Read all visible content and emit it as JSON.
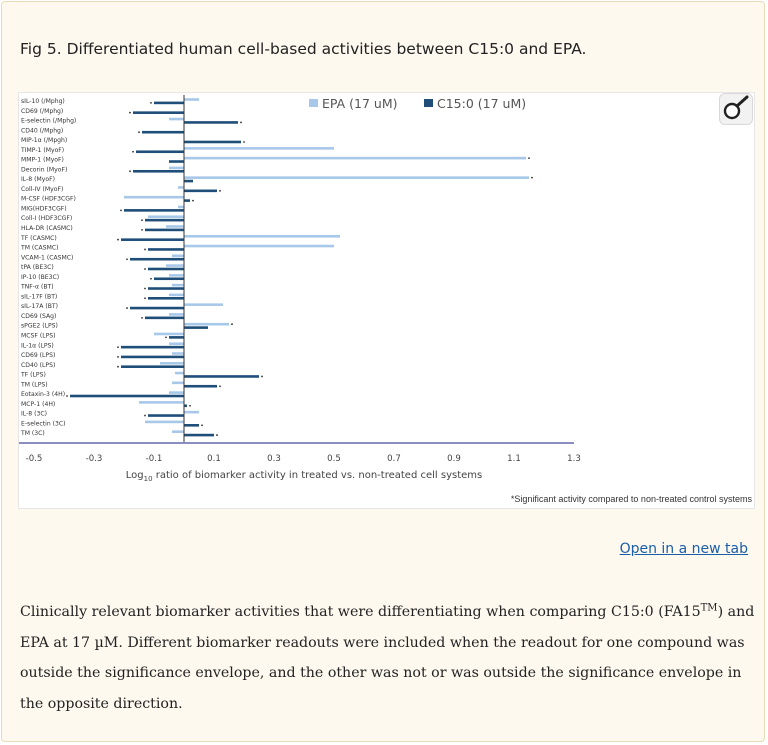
{
  "figure": {
    "title": "Fig 5. Differentiated human cell-based activities between C15:0 and EPA.",
    "zoom_icon": "magnifier-icon",
    "footnote": "*Significant activity compared to non-treated control systems",
    "open_link": "Open in a new tab"
  },
  "caption": {
    "part1": "Clinically relevant biomarker activities that were differentiating when comparing C15:0 (FA15",
    "tm": "TM",
    "part2": ") and EPA at 17 µM. Different biomarker readouts were included when the readout for one compound was outside the significance envelope, and the other was not or was outside the significance envelope in the opposite direction."
  },
  "chart_data": {
    "type": "bar",
    "orientation": "horizontal",
    "xlim": [
      -0.5,
      1.3
    ],
    "x_ticks": [
      "-0.5",
      "-0.3",
      "-0.1",
      "0.1",
      "0.3",
      "0.5",
      "0.7",
      "0.9",
      "1.1",
      "1.3"
    ],
    "xlabel_prefix": "Log",
    "xlabel_sub": "10",
    "xlabel_suffix": " ratio of biomarker activity in treated vs. non-treated cell systems",
    "legend_position": "top",
    "colors": {
      "epa": "#a8c8ea",
      "c15": "#1f4e79",
      "axis": "#8a8fbf"
    },
    "categories": [
      "sIL-10 (/Mphg)",
      "CD69 (/Mphg)",
      "E-selectin (/Mphg)",
      "CD40 (/Mphg)",
      "MIP-1α (/Mpgh)",
      "TIMP-1 (MyoF)",
      "MMP-1 (MyoF)",
      "Decorin (MyoF)",
      "IL-8 (MyoF)",
      "Coll-IV (MyoF)",
      "M-CSF (HDF3CGF)",
      "MIG(HDF3CGF)",
      "Coll-I (HDF3CGF)",
      "HLA-DR (CASMC)",
      "TF (CASMC)",
      "TM (CASMC)",
      "VCAM-1 (CASMC)",
      "tPA (BE3C)",
      "IP-10 (BE3C)",
      "TNF-α (BT)",
      "sIL-17F (BT)",
      "sIL-17A (BT)",
      "CD69 (SAg)",
      "sPGE2 (LPS)",
      "MCSF (LPS)",
      "IL-1α (LPS)",
      "CD69 (LPS)",
      "CD40 (LPS)",
      "TF (LPS)",
      "TM (LPS)",
      "Eotaxin-3 (4H)",
      "MCP-1 (4H)",
      "IL-8 (3C)",
      "E-selectin (3C)",
      "TM (3C)"
    ],
    "series": [
      {
        "name": "EPA (17 uM)",
        "values": [
          0.05,
          0.0,
          -0.05,
          0.0,
          0.0,
          0.5,
          1.14,
          -0.05,
          1.15,
          -0.02,
          -0.2,
          -0.02,
          -0.12,
          -0.06,
          0.52,
          0.5,
          -0.04,
          -0.06,
          -0.05,
          -0.04,
          -0.05,
          0.13,
          -0.05,
          0.15,
          -0.1,
          -0.05,
          -0.04,
          -0.08,
          -0.03,
          -0.04,
          -0.05,
          -0.15,
          0.05,
          -0.13,
          -0.04
        ],
        "significant": [
          false,
          false,
          false,
          false,
          false,
          false,
          true,
          false,
          true,
          false,
          false,
          false,
          false,
          false,
          false,
          false,
          false,
          false,
          false,
          false,
          false,
          false,
          false,
          true,
          false,
          false,
          false,
          false,
          false,
          false,
          false,
          false,
          false,
          false,
          false
        ]
      },
      {
        "name": "C15:0 (17 uM)",
        "values": [
          -0.1,
          -0.17,
          0.18,
          -0.14,
          0.19,
          -0.16,
          -0.05,
          -0.17,
          0.03,
          0.11,
          0.02,
          -0.2,
          -0.13,
          -0.13,
          -0.21,
          -0.12,
          -0.18,
          -0.12,
          -0.1,
          -0.12,
          -0.12,
          -0.18,
          -0.13,
          0.08,
          -0.05,
          -0.21,
          -0.21,
          -0.21,
          0.25,
          0.11,
          -0.38,
          0.01,
          -0.12,
          0.05,
          0.1
        ],
        "significant": [
          true,
          true,
          true,
          true,
          true,
          true,
          false,
          true,
          false,
          true,
          true,
          true,
          true,
          true,
          true,
          true,
          true,
          true,
          true,
          true,
          true,
          true,
          true,
          false,
          true,
          true,
          true,
          true,
          true,
          true,
          true,
          true,
          true,
          true,
          true
        ]
      }
    ]
  }
}
